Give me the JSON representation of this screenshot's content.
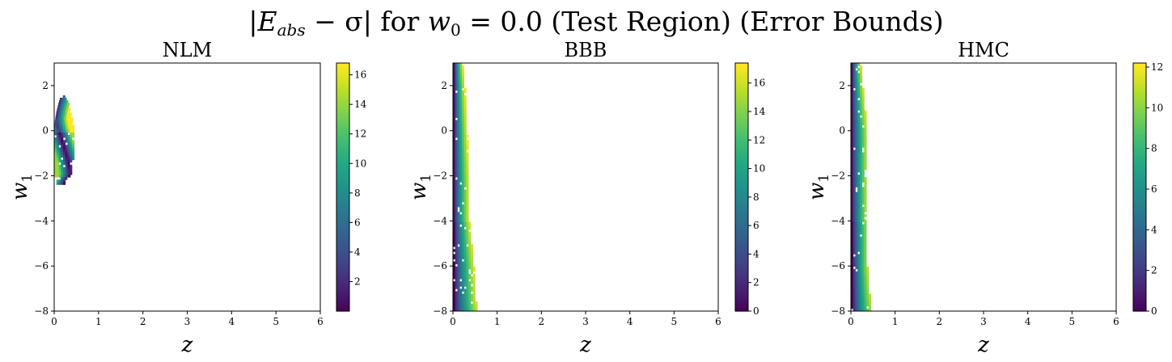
{
  "figure": {
    "title": "|E_abs − σ| for w_0 = 0.0 (Test Region) (Error Bounds)",
    "title_parts": [
      "|",
      "E",
      "abs",
      " − σ| for ",
      "w",
      "0",
      " = 0.0 (Test Region) (Error Bounds)"
    ]
  },
  "colormap": "viridis",
  "chart_data": [
    {
      "type": "heatmap",
      "title": "NLM",
      "xlabel": "z",
      "ylabel_main": "w",
      "ylabel_sub": "1",
      "xlim": [
        0,
        6
      ],
      "ylim": [
        -8,
        3
      ],
      "xticks": [
        "0",
        "1",
        "2",
        "3",
        "4",
        "5",
        "6"
      ],
      "yticks": [
        "−8",
        "−6",
        "−4",
        "−2",
        "0",
        "2"
      ],
      "colorbar": {
        "min": 0,
        "max": 16.8,
        "ticks": [
          "2",
          "4",
          "6",
          "8",
          "10",
          "12",
          "14",
          "16"
        ]
      },
      "cell": {
        "dz": 0.05,
        "dw": 0.11
      },
      "region": [
        [
          1.6,
          0.15,
          0.2,
          0.3,
          1
        ],
        [
          1.3,
          0.1,
          0.3,
          0.3,
          2
        ],
        [
          0.9,
          0.05,
          0.35,
          0.3,
          3
        ],
        [
          0.3,
          0.0,
          0.4,
          0.3,
          4
        ],
        [
          -1.2,
          0.0,
          0.4,
          0.3,
          5
        ],
        [
          -1.9,
          0.0,
          0.35,
          0.35,
          6
        ],
        [
          -2.1,
          0.05,
          0.25,
          0.2,
          7
        ],
        [
          -2.3,
          0.05,
          0.2,
          0.2,
          8
        ]
      ],
      "vmax_model": 16.8
    },
    {
      "type": "heatmap",
      "title": "BBB",
      "xlabel": "z",
      "ylabel_main": "w",
      "ylabel_sub": "1",
      "xlim": [
        0,
        6
      ],
      "ylim": [
        -8,
        3
      ],
      "xticks": [
        "0",
        "1",
        "2",
        "3",
        "4",
        "5",
        "6"
      ],
      "yticks": [
        "−8",
        "−6",
        "−4",
        "−2",
        "0",
        "2"
      ],
      "colorbar": {
        "min": 0,
        "max": 17.4,
        "ticks": [
          "0",
          "2",
          "4",
          "6",
          "8",
          "10",
          "12",
          "14",
          "16"
        ]
      },
      "cell": {
        "dz": 0.05,
        "dw": 0.11
      },
      "region": [
        [
          3.0,
          0.0,
          0.2,
          0.25,
          1
        ],
        [
          2.0,
          0.0,
          0.25,
          0.25,
          2
        ],
        [
          0.0,
          0.0,
          0.3,
          0.3,
          3
        ],
        [
          -2.0,
          0.0,
          0.35,
          0.3,
          4
        ],
        [
          -4.0,
          0.0,
          0.35,
          0.35,
          5
        ],
        [
          -6.0,
          0.0,
          0.45,
          0.35,
          6
        ],
        [
          -7.5,
          0.0,
          0.5,
          0.35,
          7
        ],
        [
          -8.0,
          0.0,
          0.55,
          0.35,
          8
        ]
      ],
      "vmax_model": 17.4
    },
    {
      "type": "heatmap",
      "title": "HMC",
      "xlabel": "z",
      "ylabel_main": "w",
      "ylabel_sub": "1",
      "xlim": [
        0,
        6
      ],
      "ylim": [
        -8,
        3
      ],
      "xticks": [
        "0",
        "1",
        "2",
        "3",
        "4",
        "5",
        "6"
      ],
      "yticks": [
        "−8",
        "−6",
        "−4",
        "−2",
        "0",
        "2"
      ],
      "colorbar": {
        "min": 0,
        "max": 12.2,
        "ticks": [
          "0",
          "2",
          "4",
          "6",
          "8",
          "10",
          "12"
        ]
      },
      "cell": {
        "dz": 0.05,
        "dw": 0.11
      },
      "region": [
        [
          3.0,
          0.0,
          0.2,
          0.2,
          1
        ],
        [
          2.0,
          0.0,
          0.25,
          0.25,
          2
        ],
        [
          0.0,
          0.0,
          0.35,
          0.3,
          3
        ],
        [
          -2.0,
          0.0,
          0.35,
          0.3,
          4
        ],
        [
          -4.0,
          0.0,
          0.35,
          0.3,
          5
        ],
        [
          -6.0,
          0.0,
          0.35,
          0.3,
          6
        ],
        [
          -7.2,
          0.0,
          0.4,
          0.3,
          7
        ],
        [
          -8.0,
          0.0,
          0.45,
          0.3,
          8
        ]
      ],
      "vmax_model": 12.2
    }
  ]
}
